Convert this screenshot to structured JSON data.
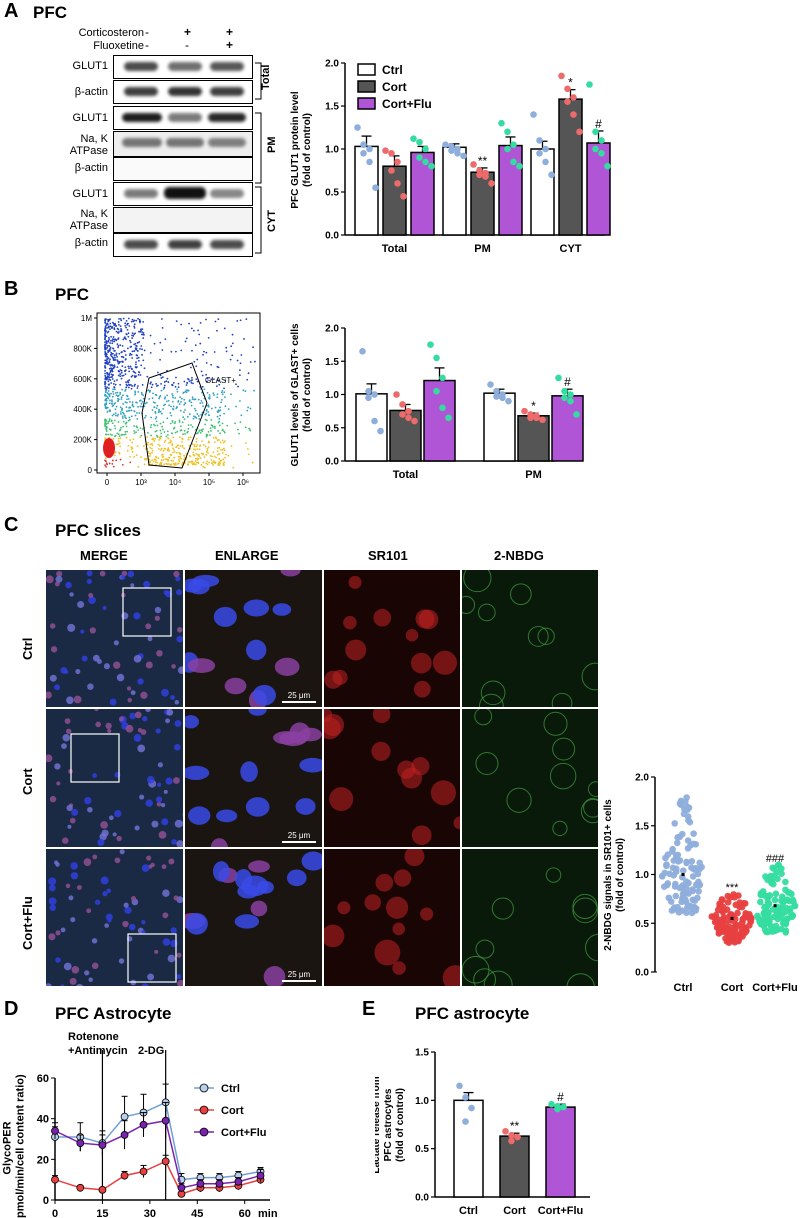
{
  "panels": {
    "A": {
      "letter": "A",
      "title": "PFC",
      "treatment_labels": [
        "Corticosteron",
        "Fluoxetine"
      ],
      "treatment_signs": [
        [
          "-",
          "+",
          "+"
        ],
        [
          "-",
          "-",
          "+"
        ]
      ],
      "blot_labels": [
        "GLUT1",
        "β-actin",
        "GLUT1",
        "Na, K\nATPase",
        "β-actin",
        "GLUT1",
        "Na, K\nATPase",
        "β-actin"
      ],
      "fractions": [
        "Total",
        "PM",
        "CYT"
      ]
    },
    "B": {
      "letter": "B",
      "title": "PFC",
      "flow_y_ticks": [
        "1M",
        "800K",
        "600K",
        "400K",
        "200K",
        "0"
      ],
      "flow_x_ticks": [
        "0",
        "10³",
        "10⁴",
        "10⁵",
        "10⁶"
      ],
      "gate_label": "GLAST+"
    },
    "C": {
      "letter": "C",
      "title": "PFC slices",
      "columns": [
        "MERGE",
        "ENLARGE",
        "SR101",
        "2-NBDG"
      ],
      "rows": [
        "Ctrl",
        "Cort",
        "Cort+Flu"
      ],
      "scale_label": "25 μm"
    },
    "D": {
      "letter": "D",
      "title": "PFC Astrocyte",
      "injections": [
        "Rotenone\n+Antimycin",
        "2-DG"
      ]
    },
    "E": {
      "letter": "E",
      "title": "PFC astrocyte"
    }
  },
  "legend": [
    "Ctrl",
    "Cort",
    "Cort+Flu"
  ],
  "colors": {
    "ctrl_fill": "#ffffff",
    "cort_fill": "#555555",
    "flu_fill": "#b055d6",
    "ctrl_dot": "#8eaedb",
    "cort_dot": "#ee6b6b",
    "flu_dot": "#35dca0",
    "red": "#e84040",
    "purple": "#7a22b0",
    "blue_ctrl": "#4e8bd6"
  },
  "chart_data": [
    {
      "id": "A",
      "type": "bar",
      "ylabel": "PFC GLUT1 protein level\n(fold of control)",
      "ylim": [
        0,
        2.0
      ],
      "yticks": [
        "0.0",
        "0.5",
        "1.0",
        "1.5",
        "2.0"
      ],
      "categories": [
        "Total",
        "PM",
        "CYT"
      ],
      "series": [
        {
          "name": "Ctrl",
          "values": [
            1.03,
            1.02,
            1.0
          ],
          "sem": [
            0.12,
            0.04,
            0.09
          ],
          "points": [
            [
              1.25,
              1.05,
              1.0,
              0.95,
              0.85,
              0.55
            ],
            [
              1.05,
              1.03,
              1.0,
              0.98,
              0.95,
              0.92
            ],
            [
              1.4,
              1.1,
              1.0,
              0.95,
              0.85,
              0.7
            ]
          ]
        },
        {
          "name": "Cort",
          "values": [
            0.8,
            0.73,
            1.58
          ],
          "sem": [
            0.12,
            0.05,
            0.11
          ],
          "points": [
            [
              0.98,
              0.95,
              0.85,
              0.75,
              0.6,
              0.45
            ],
            [
              0.82,
              0.75,
              0.72,
              0.7,
              0.68,
              0.6
            ],
            [
              1.85,
              1.7,
              1.6,
              1.55,
              1.4,
              1.2
            ]
          ]
        },
        {
          "name": "Cort+Flu",
          "values": [
            0.96,
            1.04,
            1.07
          ],
          "sem": [
            0.07,
            0.1,
            0.14
          ],
          "points": [
            [
              1.12,
              1.08,
              1.0,
              0.9,
              0.85,
              0.8
            ],
            [
              1.3,
              1.2,
              1.05,
              1.0,
              0.85,
              0.8
            ],
            [
              1.75,
              1.2,
              1.1,
              1.0,
              0.95,
              0.8
            ]
          ]
        }
      ],
      "annotations": [
        {
          "category": "PM",
          "series": "Cort",
          "text": "**"
        },
        {
          "category": "CYT",
          "series": "Cort",
          "text": "*"
        },
        {
          "category": "CYT",
          "series": "Cort+Flu",
          "text": "#"
        }
      ]
    },
    {
      "id": "B",
      "type": "bar",
      "ylabel": "GLUT1 levels of GLAST+ cells\n(fold of control)",
      "ylim": [
        0,
        2.0
      ],
      "yticks": [
        "0.0",
        "0.5",
        "1.0",
        "1.5",
        "2.0"
      ],
      "categories": [
        "Total",
        "PM"
      ],
      "series": [
        {
          "name": "Ctrl",
          "values": [
            1.01,
            1.02
          ],
          "sem": [
            0.15,
            0.06
          ],
          "points": [
            [
              1.65,
              1.05,
              1.0,
              0.95,
              0.6,
              0.45
            ],
            [
              1.15,
              1.05,
              1.0,
              0.97,
              0.95,
              0.9
            ]
          ]
        },
        {
          "name": "Cort",
          "values": [
            0.76,
            0.68
          ],
          "sem": [
            0.09,
            0.04
          ],
          "points": [
            [
              1.0,
              0.85,
              0.75,
              0.7,
              0.65,
              0.6
            ],
            [
              0.75,
              0.7,
              0.68,
              0.65,
              0.65,
              0.62
            ]
          ]
        },
        {
          "name": "Cort+Flu",
          "values": [
            1.21,
            0.98
          ],
          "sem": [
            0.19,
            0.1
          ],
          "points": [
            [
              1.75,
              1.55,
              1.25,
              1.05,
              0.8,
              0.65
            ],
            [
              1.25,
              1.05,
              1.0,
              0.95,
              0.9,
              0.7
            ]
          ]
        }
      ],
      "annotations": [
        {
          "category": "PM",
          "series": "Cort",
          "text": "*"
        },
        {
          "category": "PM",
          "series": "Cort+Flu",
          "text": "#"
        }
      ]
    },
    {
      "id": "C",
      "type": "scatter",
      "ylabel": "2-NBDG signals in SR101+ cells\n(fold of control)",
      "ylim": [
        0,
        2.0
      ],
      "yticks": [
        "0.0",
        "0.5",
        "1.0",
        "1.5",
        "2.0"
      ],
      "categories": [
        "Ctrl",
        "Cort",
        "Cort+Flu"
      ],
      "ranges": [
        [
          0.6,
          1.8
        ],
        [
          0.3,
          0.8
        ],
        [
          0.4,
          1.1
        ]
      ],
      "means": [
        1.0,
        0.55,
        0.68
      ],
      "annotations": [
        {
          "category": "Cort",
          "text": "***"
        },
        {
          "category": "Cort+Flu",
          "text": "###"
        }
      ]
    },
    {
      "id": "D",
      "type": "line",
      "ylabel": "GlycoPER\n(pmol/min/cell content ratio)",
      "xlabel": "min",
      "xlim": [
        0,
        68
      ],
      "ylim": [
        0,
        60
      ],
      "xticks": [
        "0",
        "15",
        "30",
        "45",
        "60"
      ],
      "yticks": [
        "0",
        "20",
        "40",
        "60"
      ],
      "x": [
        0,
        8,
        15,
        22,
        28,
        35,
        40,
        46,
        52,
        58,
        65
      ],
      "series": [
        {
          "name": "Ctrl",
          "values": [
            31,
            31,
            28,
            41,
            43,
            48,
            10,
            11,
            11,
            12,
            14
          ],
          "err": [
            5,
            7,
            6,
            10,
            9,
            9,
            3,
            2,
            2,
            2,
            2
          ]
        },
        {
          "name": "Cort",
          "values": [
            10,
            6,
            5,
            12,
            14,
            19,
            3,
            6,
            6,
            7,
            10
          ],
          "err": [
            2,
            1,
            1,
            2,
            3,
            3,
            1,
            2,
            2,
            2,
            2
          ]
        },
        {
          "name": "Cort+Flu",
          "values": [
            34,
            28,
            27,
            32,
            37,
            39,
            6,
            8,
            8,
            9,
            12
          ],
          "err": [
            4,
            4,
            5,
            7,
            6,
            9,
            2,
            2,
            2,
            2,
            3
          ]
        }
      ],
      "injection_x": [
        15,
        35
      ]
    },
    {
      "id": "E",
      "type": "bar",
      "ylabel": "Lactate release from\nPFC  astrocytes\n(fold of control)",
      "ylim": [
        0,
        1.5
      ],
      "yticks": [
        "0.0",
        "0.5",
        "1.0",
        "1.5"
      ],
      "categories": [
        "Ctrl",
        "Cort",
        "Cort+Flu"
      ],
      "values": [
        1.0,
        0.63,
        0.93
      ],
      "sem": [
        0.08,
        0.03,
        0.03
      ],
      "points": [
        [
          1.15,
          1.03,
          0.92,
          0.78
        ],
        [
          0.68,
          0.64,
          0.62,
          0.58
        ],
        [
          0.96,
          0.94,
          0.93,
          0.91
        ]
      ],
      "annotations": [
        {
          "category": "Cort",
          "text": "**"
        },
        {
          "category": "Cort+Flu",
          "text": "#"
        }
      ]
    }
  ]
}
